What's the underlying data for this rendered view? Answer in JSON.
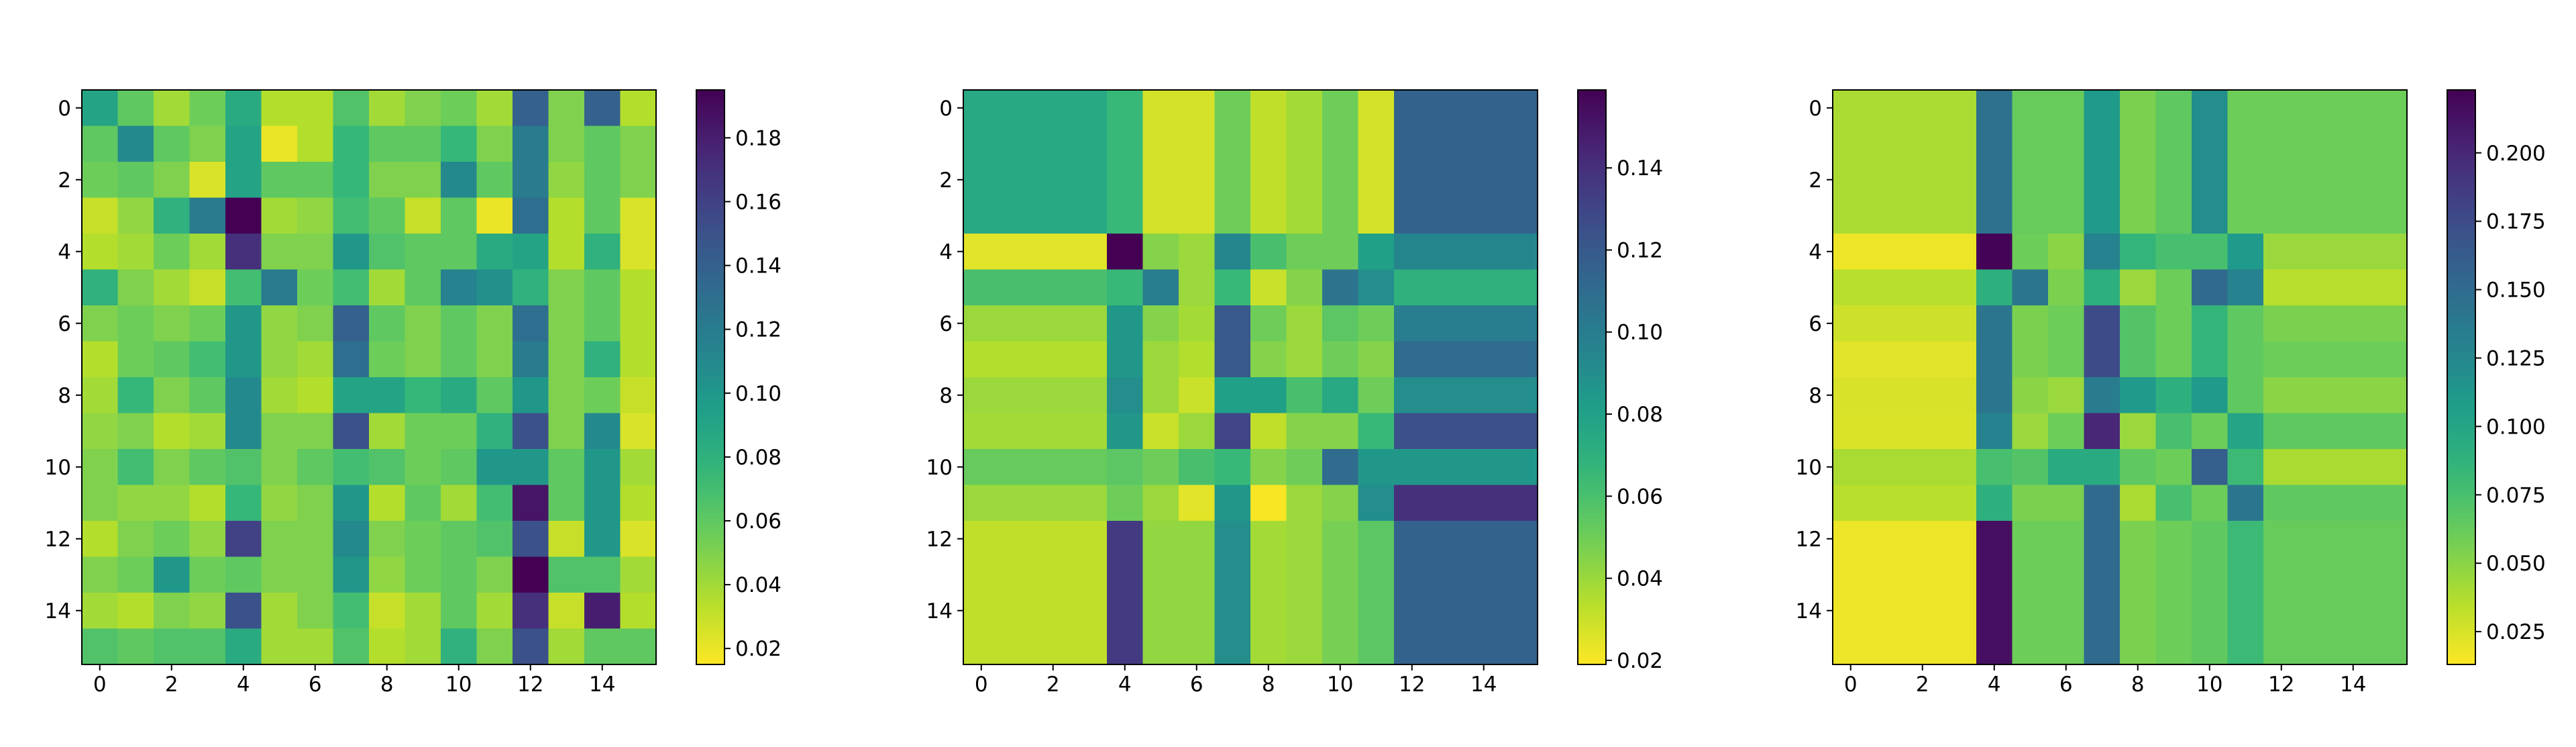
{
  "chart_data": [
    {
      "type": "heatmap",
      "title": "",
      "xlabel": "",
      "ylabel": "",
      "x_ticks": [
        "0",
        "2",
        "4",
        "6",
        "8",
        "10",
        "12",
        "14"
      ],
      "y_ticks": [
        "0",
        "2",
        "4",
        "6",
        "8",
        "10",
        "12",
        "14"
      ],
      "colormap": "viridis_r",
      "vmin": 0.015,
      "vmax": 0.195,
      "colorbar_ticks": [
        "0.02",
        "0.04",
        "0.06",
        "0.08",
        "0.10",
        "0.12",
        "0.14",
        "0.16",
        "0.18"
      ],
      "matrix": [
        [
          0.09,
          0.06,
          0.04,
          0.055,
          0.085,
          0.035,
          0.035,
          0.065,
          0.04,
          0.05,
          0.055,
          0.04,
          0.14,
          0.05,
          0.14,
          0.035
        ],
        [
          0.06,
          0.11,
          0.06,
          0.05,
          0.09,
          0.02,
          0.035,
          0.075,
          0.06,
          0.06,
          0.075,
          0.05,
          0.12,
          0.05,
          0.06,
          0.05
        ],
        [
          0.055,
          0.06,
          0.05,
          0.025,
          0.09,
          0.06,
          0.06,
          0.075,
          0.05,
          0.05,
          0.11,
          0.06,
          0.12,
          0.045,
          0.06,
          0.05
        ],
        [
          0.03,
          0.045,
          0.08,
          0.12,
          0.195,
          0.04,
          0.045,
          0.07,
          0.06,
          0.03,
          0.06,
          0.02,
          0.13,
          0.035,
          0.06,
          0.025
        ],
        [
          0.035,
          0.04,
          0.055,
          0.04,
          0.17,
          0.05,
          0.05,
          0.1,
          0.065,
          0.06,
          0.06,
          0.085,
          0.09,
          0.035,
          0.08,
          0.025
        ],
        [
          0.08,
          0.05,
          0.04,
          0.03,
          0.07,
          0.12,
          0.055,
          0.07,
          0.04,
          0.06,
          0.115,
          0.105,
          0.08,
          0.05,
          0.06,
          0.035
        ],
        [
          0.05,
          0.055,
          0.05,
          0.055,
          0.1,
          0.045,
          0.05,
          0.14,
          0.06,
          0.05,
          0.06,
          0.05,
          0.13,
          0.05,
          0.06,
          0.035
        ],
        [
          0.035,
          0.055,
          0.06,
          0.07,
          0.1,
          0.045,
          0.04,
          0.13,
          0.055,
          0.05,
          0.06,
          0.05,
          0.12,
          0.05,
          0.08,
          0.035
        ],
        [
          0.04,
          0.075,
          0.05,
          0.06,
          0.11,
          0.04,
          0.035,
          0.09,
          0.09,
          0.075,
          0.085,
          0.06,
          0.1,
          0.05,
          0.055,
          0.03
        ],
        [
          0.045,
          0.05,
          0.035,
          0.04,
          0.11,
          0.05,
          0.05,
          0.15,
          0.04,
          0.055,
          0.055,
          0.08,
          0.15,
          0.05,
          0.11,
          0.025
        ],
        [
          0.05,
          0.07,
          0.05,
          0.06,
          0.065,
          0.05,
          0.06,
          0.07,
          0.065,
          0.055,
          0.06,
          0.1,
          0.1,
          0.06,
          0.1,
          0.04
        ],
        [
          0.05,
          0.045,
          0.045,
          0.035,
          0.075,
          0.045,
          0.05,
          0.1,
          0.035,
          0.06,
          0.04,
          0.07,
          0.185,
          0.06,
          0.1,
          0.035
        ],
        [
          0.035,
          0.05,
          0.055,
          0.045,
          0.16,
          0.05,
          0.05,
          0.11,
          0.05,
          0.055,
          0.06,
          0.065,
          0.15,
          0.03,
          0.1,
          0.025
        ],
        [
          0.05,
          0.055,
          0.1,
          0.055,
          0.06,
          0.05,
          0.05,
          0.1,
          0.045,
          0.055,
          0.06,
          0.05,
          0.195,
          0.065,
          0.065,
          0.04
        ],
        [
          0.04,
          0.035,
          0.05,
          0.045,
          0.15,
          0.04,
          0.05,
          0.07,
          0.03,
          0.04,
          0.06,
          0.04,
          0.17,
          0.03,
          0.18,
          0.035
        ],
        [
          0.065,
          0.06,
          0.065,
          0.065,
          0.085,
          0.04,
          0.04,
          0.065,
          0.035,
          0.04,
          0.08,
          0.05,
          0.15,
          0.04,
          0.06,
          0.06
        ]
      ]
    },
    {
      "type": "heatmap",
      "title": "",
      "xlabel": "",
      "ylabel": "",
      "x_ticks": [
        "0",
        "2",
        "4",
        "6",
        "8",
        "10",
        "12",
        "14"
      ],
      "y_ticks": [
        "0",
        "2",
        "4",
        "6",
        "8",
        "10",
        "12",
        "14"
      ],
      "colormap": "viridis_r",
      "vmin": 0.019,
      "vmax": 0.159,
      "colorbar_ticks": [
        "0.02",
        "0.04",
        "0.06",
        "0.08",
        "0.10",
        "0.12",
        "0.14"
      ],
      "matrix": [
        [
          0.075,
          0.075,
          0.075,
          0.075,
          0.065,
          0.028,
          0.028,
          0.05,
          0.032,
          0.038,
          0.05,
          0.028,
          0.115,
          0.115,
          0.115,
          0.115
        ],
        [
          0.075,
          0.075,
          0.075,
          0.075,
          0.065,
          0.028,
          0.028,
          0.05,
          0.032,
          0.038,
          0.05,
          0.028,
          0.115,
          0.115,
          0.115,
          0.115
        ],
        [
          0.075,
          0.075,
          0.075,
          0.075,
          0.065,
          0.028,
          0.028,
          0.05,
          0.032,
          0.038,
          0.05,
          0.028,
          0.115,
          0.115,
          0.115,
          0.115
        ],
        [
          0.075,
          0.075,
          0.075,
          0.075,
          0.065,
          0.028,
          0.028,
          0.05,
          0.032,
          0.038,
          0.05,
          0.028,
          0.115,
          0.115,
          0.115,
          0.115
        ],
        [
          0.025,
          0.025,
          0.025,
          0.025,
          0.159,
          0.045,
          0.04,
          0.095,
          0.06,
          0.05,
          0.05,
          0.08,
          0.095,
          0.095,
          0.095,
          0.095
        ],
        [
          0.06,
          0.06,
          0.06,
          0.06,
          0.065,
          0.1,
          0.04,
          0.065,
          0.03,
          0.045,
          0.105,
          0.09,
          0.07,
          0.07,
          0.07,
          0.07
        ],
        [
          0.04,
          0.04,
          0.04,
          0.04,
          0.085,
          0.045,
          0.038,
          0.12,
          0.05,
          0.04,
          0.055,
          0.05,
          0.1,
          0.1,
          0.1,
          0.1
        ],
        [
          0.035,
          0.035,
          0.035,
          0.035,
          0.085,
          0.04,
          0.035,
          0.12,
          0.045,
          0.04,
          0.05,
          0.045,
          0.11,
          0.11,
          0.11,
          0.11
        ],
        [
          0.04,
          0.04,
          0.04,
          0.04,
          0.09,
          0.04,
          0.03,
          0.08,
          0.08,
          0.06,
          0.075,
          0.05,
          0.09,
          0.09,
          0.09,
          0.09
        ],
        [
          0.038,
          0.038,
          0.038,
          0.038,
          0.085,
          0.03,
          0.04,
          0.13,
          0.032,
          0.045,
          0.045,
          0.065,
          0.125,
          0.125,
          0.125,
          0.125
        ],
        [
          0.052,
          0.052,
          0.052,
          0.052,
          0.055,
          0.05,
          0.06,
          0.065,
          0.045,
          0.05,
          0.11,
          0.085,
          0.085,
          0.085,
          0.085,
          0.085
        ],
        [
          0.04,
          0.04,
          0.04,
          0.04,
          0.05,
          0.04,
          0.025,
          0.085,
          0.02,
          0.04,
          0.045,
          0.09,
          0.14,
          0.14,
          0.14,
          0.14
        ],
        [
          0.032,
          0.032,
          0.032,
          0.032,
          0.135,
          0.042,
          0.042,
          0.09,
          0.038,
          0.04,
          0.048,
          0.055,
          0.115,
          0.115,
          0.115,
          0.115
        ],
        [
          0.032,
          0.032,
          0.032,
          0.032,
          0.135,
          0.042,
          0.042,
          0.09,
          0.038,
          0.04,
          0.048,
          0.055,
          0.115,
          0.115,
          0.115,
          0.115
        ],
        [
          0.032,
          0.032,
          0.032,
          0.032,
          0.135,
          0.042,
          0.042,
          0.09,
          0.038,
          0.04,
          0.048,
          0.055,
          0.115,
          0.115,
          0.115,
          0.115
        ],
        [
          0.032,
          0.032,
          0.032,
          0.032,
          0.135,
          0.042,
          0.042,
          0.09,
          0.038,
          0.04,
          0.048,
          0.055,
          0.115,
          0.115,
          0.115,
          0.115
        ]
      ]
    },
    {
      "type": "heatmap",
      "title": "",
      "xlabel": "",
      "ylabel": "",
      "x_ticks": [
        "0",
        "2",
        "4",
        "6",
        "8",
        "10",
        "12",
        "14"
      ],
      "y_ticks": [
        "0",
        "2",
        "4",
        "6",
        "8",
        "10",
        "12",
        "14"
      ],
      "colormap": "viridis_r",
      "vmin": 0.013,
      "vmax": 0.223,
      "colorbar_ticks": [
        "0.025",
        "0.050",
        "0.075",
        "0.100",
        "0.125",
        "0.150",
        "0.175",
        "0.200"
      ],
      "matrix": [
        [
          0.04,
          0.04,
          0.04,
          0.04,
          0.145,
          0.062,
          0.062,
          0.11,
          0.055,
          0.065,
          0.12,
          0.06,
          0.06,
          0.06,
          0.06,
          0.06
        ],
        [
          0.04,
          0.04,
          0.04,
          0.04,
          0.145,
          0.062,
          0.062,
          0.11,
          0.055,
          0.065,
          0.12,
          0.06,
          0.06,
          0.06,
          0.06,
          0.06
        ],
        [
          0.04,
          0.04,
          0.04,
          0.04,
          0.145,
          0.062,
          0.062,
          0.11,
          0.055,
          0.065,
          0.12,
          0.06,
          0.06,
          0.06,
          0.06,
          0.06
        ],
        [
          0.04,
          0.04,
          0.04,
          0.04,
          0.145,
          0.062,
          0.062,
          0.11,
          0.055,
          0.065,
          0.12,
          0.06,
          0.06,
          0.06,
          0.06,
          0.06
        ],
        [
          0.018,
          0.018,
          0.018,
          0.018,
          0.222,
          0.06,
          0.05,
          0.13,
          0.085,
          0.075,
          0.075,
          0.11,
          0.045,
          0.045,
          0.045,
          0.045
        ],
        [
          0.035,
          0.035,
          0.035,
          0.035,
          0.09,
          0.14,
          0.055,
          0.09,
          0.045,
          0.06,
          0.15,
          0.13,
          0.035,
          0.035,
          0.035,
          0.035
        ],
        [
          0.028,
          0.028,
          0.028,
          0.028,
          0.14,
          0.055,
          0.06,
          0.175,
          0.07,
          0.06,
          0.085,
          0.065,
          0.055,
          0.055,
          0.055,
          0.055
        ],
        [
          0.022,
          0.022,
          0.022,
          0.022,
          0.14,
          0.055,
          0.06,
          0.175,
          0.07,
          0.06,
          0.085,
          0.065,
          0.06,
          0.06,
          0.06,
          0.06
        ],
        [
          0.025,
          0.025,
          0.025,
          0.025,
          0.14,
          0.05,
          0.045,
          0.135,
          0.11,
          0.09,
          0.11,
          0.065,
          0.05,
          0.05,
          0.05,
          0.05
        ],
        [
          0.024,
          0.024,
          0.024,
          0.024,
          0.13,
          0.045,
          0.06,
          0.2,
          0.045,
          0.075,
          0.06,
          0.1,
          0.065,
          0.065,
          0.065,
          0.065
        ],
        [
          0.04,
          0.04,
          0.04,
          0.04,
          0.075,
          0.07,
          0.095,
          0.095,
          0.065,
          0.06,
          0.16,
          0.08,
          0.04,
          0.04,
          0.04,
          0.04
        ],
        [
          0.035,
          0.035,
          0.035,
          0.035,
          0.09,
          0.055,
          0.055,
          0.15,
          0.04,
          0.075,
          0.06,
          0.14,
          0.065,
          0.065,
          0.065,
          0.065
        ],
        [
          0.018,
          0.018,
          0.018,
          0.018,
          0.215,
          0.06,
          0.06,
          0.15,
          0.055,
          0.06,
          0.065,
          0.08,
          0.062,
          0.062,
          0.062,
          0.062
        ],
        [
          0.018,
          0.018,
          0.018,
          0.018,
          0.215,
          0.06,
          0.06,
          0.15,
          0.055,
          0.06,
          0.065,
          0.08,
          0.062,
          0.062,
          0.062,
          0.062
        ],
        [
          0.018,
          0.018,
          0.018,
          0.018,
          0.215,
          0.06,
          0.06,
          0.15,
          0.055,
          0.06,
          0.065,
          0.08,
          0.062,
          0.062,
          0.062,
          0.062
        ],
        [
          0.018,
          0.018,
          0.018,
          0.018,
          0.215,
          0.06,
          0.06,
          0.15,
          0.055,
          0.06,
          0.065,
          0.08,
          0.062,
          0.062,
          0.062,
          0.062
        ]
      ]
    }
  ]
}
